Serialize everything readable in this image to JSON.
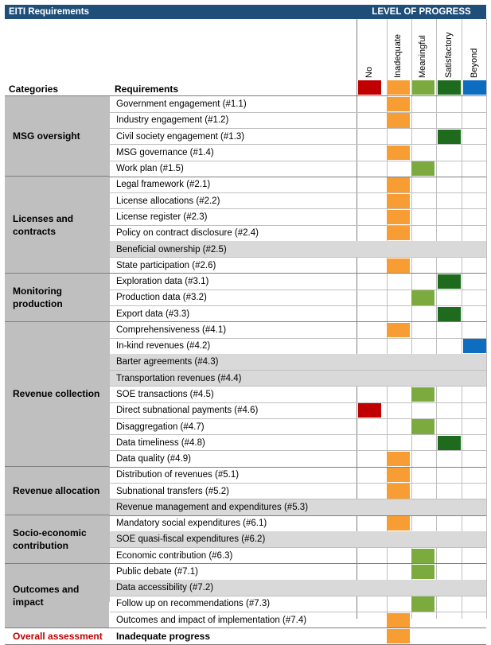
{
  "header": {
    "title": "EITI Requirements",
    "progress_title": "LEVEL OF PROGRESS",
    "categories_label": "Categories",
    "requirements_label": "Requirements"
  },
  "levels": [
    {
      "label": "No",
      "color": "#c00000"
    },
    {
      "label": "Inadequate",
      "color": "#f79d33"
    },
    {
      "label": "Meaningful",
      "color": "#7bab3e"
    },
    {
      "label": "Satisfactory",
      "color": "#1e6b1e"
    },
    {
      "label": "Beyond",
      "color": "#0d6dc0"
    }
  ],
  "na_color": "#d9d9d9",
  "categories": [
    {
      "name": "MSG oversight",
      "rows": [
        {
          "label": "Government engagement (#1.1)",
          "level": 1
        },
        {
          "label": "Industry engagement (#1.2)",
          "level": 1
        },
        {
          "label": "Civil society engagement (#1.3)",
          "level": 3
        },
        {
          "label": "MSG governance (#1.4)",
          "level": 1
        },
        {
          "label": "Work plan (#1.5)",
          "level": 2
        }
      ]
    },
    {
      "name": "Licenses and contracts",
      "rows": [
        {
          "label": "Legal framework (#2.1)",
          "level": 1
        },
        {
          "label": "License allocations (#2.2)",
          "level": 1
        },
        {
          "label": "License register (#2.3)",
          "level": 1
        },
        {
          "label": "Policy on contract disclosure (#2.4)",
          "level": 1
        },
        {
          "label": "Beneficial ownership (#2.5)",
          "level": -1
        },
        {
          "label": "State participation (#2.6)",
          "level": 1
        }
      ]
    },
    {
      "name": "Monitoring production",
      "rows": [
        {
          "label": "Exploration data (#3.1)",
          "level": 3
        },
        {
          "label": "Production data (#3.2)",
          "level": 2
        },
        {
          "label": "Export data (#3.3)",
          "level": 3
        }
      ]
    },
    {
      "name": "Revenue collection",
      "rows": [
        {
          "label": "Comprehensiveness (#4.1)",
          "level": 1
        },
        {
          "label": "In-kind revenues (#4.2)",
          "level": 4
        },
        {
          "label": "Barter agreements (#4.3)",
          "level": -1
        },
        {
          "label": "Transportation revenues (#4.4)",
          "level": -1
        },
        {
          "label": "SOE transactions (#4.5)",
          "level": 2
        },
        {
          "label": "Direct subnational payments (#4.6)",
          "level": 0
        },
        {
          "label": "Disaggregation (#4.7)",
          "level": 2
        },
        {
          "label": "Data timeliness (#4.8)",
          "level": 3
        },
        {
          "label": "Data quality (#4.9)",
          "level": 1
        }
      ]
    },
    {
      "name": "Revenue allocation",
      "rows": [
        {
          "label": "Distribution of revenues (#5.1)",
          "level": 1
        },
        {
          "label": "Subnational transfers (#5.2)",
          "level": 1
        },
        {
          "label": "Revenue management and expenditures (#5.3)",
          "level": -1
        }
      ]
    },
    {
      "name": "Socio-economic contribution",
      "rows": [
        {
          "label": "Mandatory social expenditures (#6.1)",
          "level": 1
        },
        {
          "label": "SOE quasi-fiscal expenditures (#6.2)",
          "level": -1
        },
        {
          "label": "Economic contribution (#6.3)",
          "level": 2
        }
      ]
    },
    {
      "name": "Outcomes and impact",
      "rows": [
        {
          "label": "Public debate (#7.1)",
          "level": 2
        },
        {
          "label": "Data accessibility (#7.2)",
          "level": -1
        },
        {
          "label": "Follow up on recommendations (#7.3)",
          "level": 2
        },
        {
          "label": "Outcomes and impact of implementation (#7.4)",
          "level": 1
        }
      ]
    }
  ],
  "overall": {
    "label": "Overall assessment",
    "value": "Inadequate progress",
    "level": 1
  }
}
